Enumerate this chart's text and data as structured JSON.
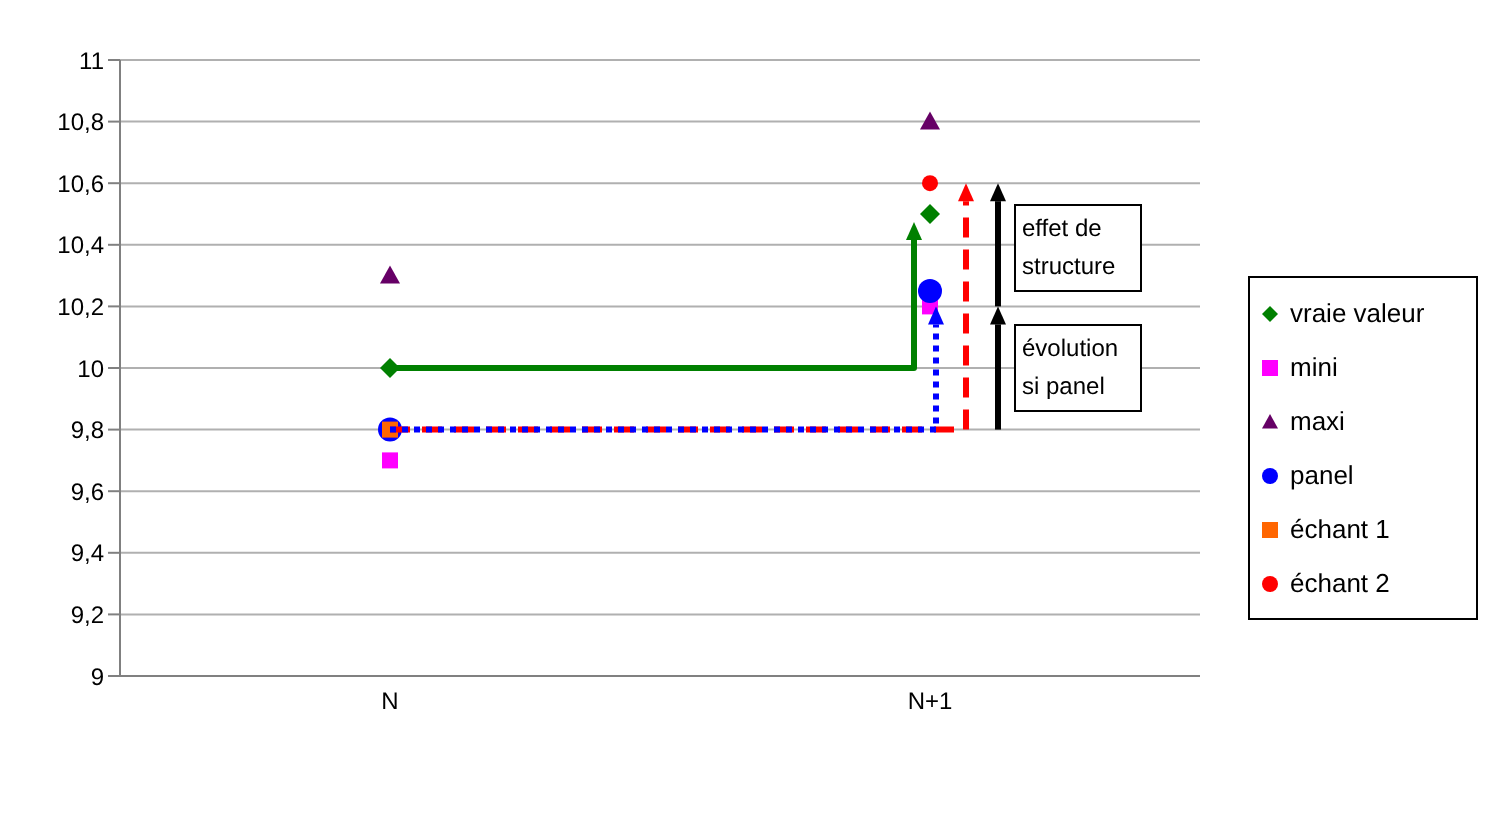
{
  "chart_data": {
    "type": "scatter",
    "categories": [
      "N",
      "N+1"
    ],
    "series": [
      {
        "name": "vraie valeur",
        "color": "#008000",
        "marker": "diamond",
        "values": [
          10,
          10.5
        ]
      },
      {
        "name": "mini",
        "color": "#ff00ff",
        "marker": "square",
        "values": [
          9.7,
          10.2
        ]
      },
      {
        "name": "maxi",
        "color": "#660066",
        "marker": "triangle",
        "values": [
          10.3,
          10.8
        ]
      },
      {
        "name": "panel",
        "color": "#0000ff",
        "marker": "circle",
        "values": [
          9.8,
          10.25
        ]
      },
      {
        "name": "échant 1",
        "color": "#ff6600",
        "marker": "square",
        "values": [
          9.8,
          null
        ]
      },
      {
        "name": "échant 2",
        "color": "#ff0000",
        "marker": "circle",
        "values": [
          null,
          10.6
        ]
      }
    ],
    "ylim": [
      9,
      11
    ],
    "yticks": [
      {
        "value": 9,
        "label": "9"
      },
      {
        "value": 9.2,
        "label": "9,2"
      },
      {
        "value": 9.4,
        "label": "9,4"
      },
      {
        "value": 9.6,
        "label": "9,6"
      },
      {
        "value": 9.8,
        "label": "9,8"
      },
      {
        "value": 10,
        "label": "10"
      },
      {
        "value": 10.2,
        "label": "10,2"
      },
      {
        "value": 10.4,
        "label": "10,4"
      },
      {
        "value": 10.6,
        "label": "10,6"
      },
      {
        "value": 10.8,
        "label": "10,8"
      },
      {
        "value": 11,
        "label": "11"
      }
    ],
    "grid": "y",
    "legend": "right",
    "annotations": [
      "effet de structure",
      "évolution si panel"
    ]
  }
}
